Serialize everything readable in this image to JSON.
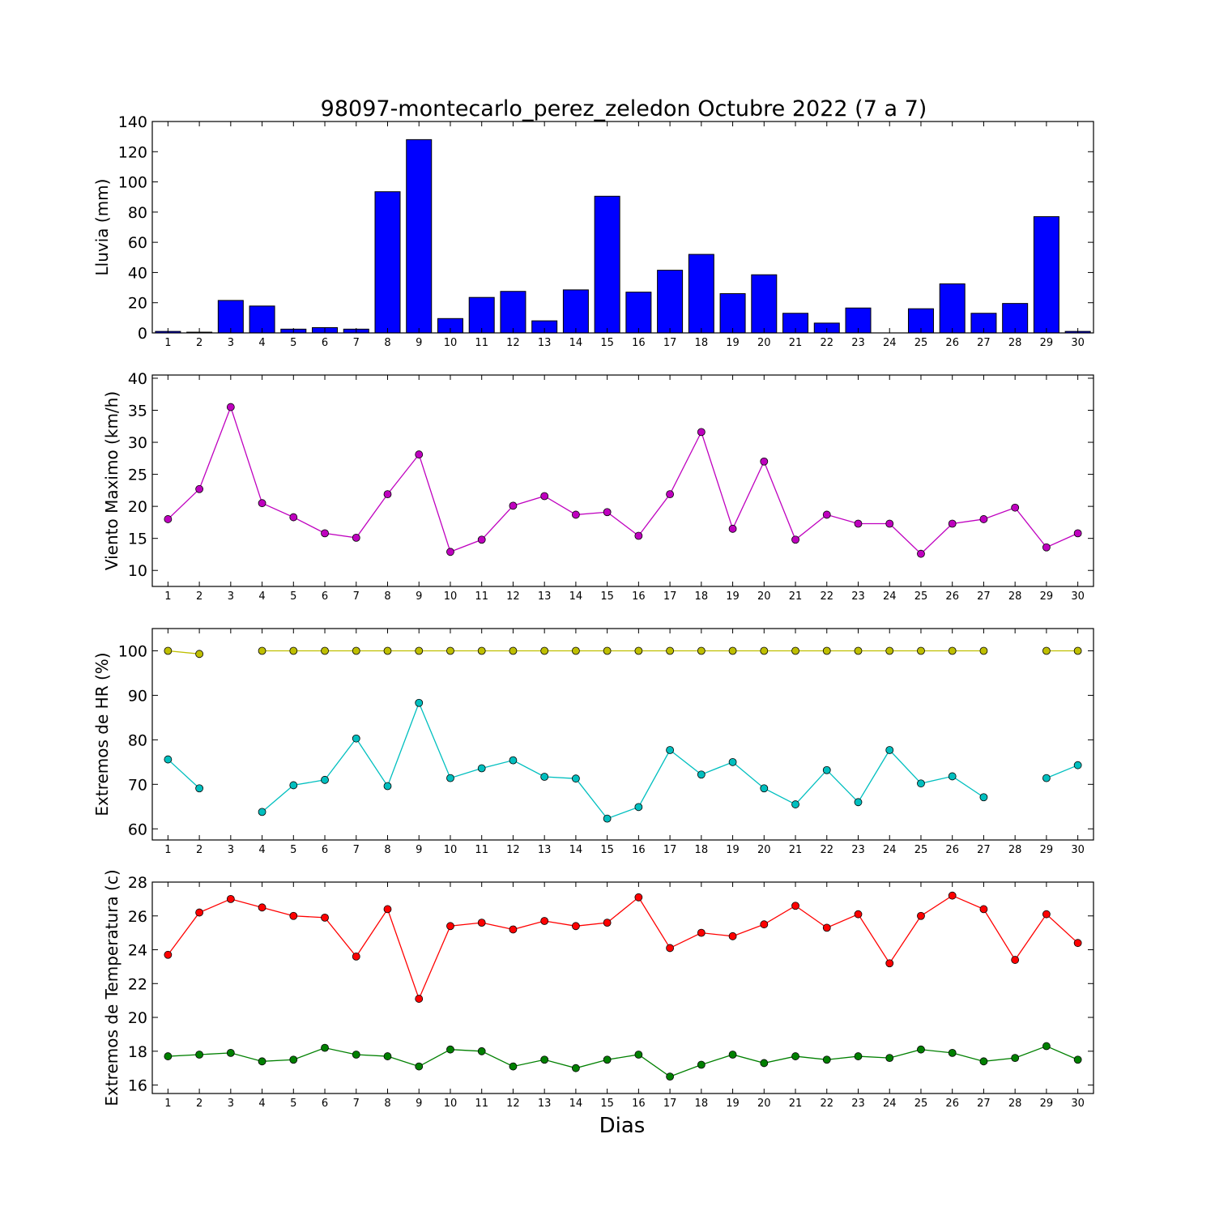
{
  "chart_data": [
    {
      "id": "lluvia",
      "type": "bar",
      "title": "98097-montecarlo_perez_zeledon Octubre 2022  (7 a 7)",
      "xlabel": "",
      "ylabel": "Lluvia (mm)",
      "categories": [
        "1",
        "2",
        "3",
        "4",
        "5",
        "6",
        "7",
        "8",
        "9",
        "10",
        "11",
        "12",
        "13",
        "14",
        "15",
        "16",
        "17",
        "18",
        "19",
        "20",
        "21",
        "22",
        "23",
        "24",
        "25",
        "26",
        "27",
        "28",
        "29",
        "30"
      ],
      "values": [
        1.0,
        0.5,
        21.5,
        17.8,
        2.5,
        3.5,
        2.5,
        93.5,
        128.0,
        9.5,
        23.5,
        27.5,
        8.0,
        28.5,
        90.5,
        27.0,
        41.5,
        52.0,
        26.0,
        38.5,
        13.0,
        6.5,
        16.5,
        0.0,
        16.0,
        32.5,
        13.0,
        19.5,
        77.0,
        1.0
      ],
      "yticks": [
        0,
        20,
        40,
        60,
        80,
        100,
        120,
        140
      ],
      "ylim": [
        0,
        140
      ],
      "colors": {
        "bar": "#0000ff",
        "edge": "#000000"
      }
    },
    {
      "id": "viento",
      "type": "line",
      "xlabel": "",
      "ylabel": "Viento Maximo (km/h)",
      "categories": [
        "1",
        "2",
        "3",
        "4",
        "5",
        "6",
        "7",
        "8",
        "9",
        "10",
        "11",
        "12",
        "13",
        "14",
        "15",
        "16",
        "17",
        "18",
        "19",
        "20",
        "21",
        "22",
        "23",
        "24",
        "25",
        "26",
        "27",
        "28",
        "29",
        "30"
      ],
      "series": [
        {
          "values": [
            18.0,
            22.7,
            35.5,
            20.5,
            18.3,
            15.8,
            15.1,
            21.9,
            28.1,
            12.9,
            14.8,
            20.1,
            21.6,
            18.7,
            19.1,
            15.4,
            21.9,
            31.6,
            16.5,
            27.0,
            14.8,
            18.7,
            17.3,
            17.3,
            12.6,
            17.3,
            18.0,
            19.8,
            13.6,
            15.8
          ],
          "color": "#bf00bf"
        }
      ],
      "yticks": [
        10,
        15,
        20,
        25,
        30,
        35,
        40
      ],
      "ylim": [
        7.5,
        40.5
      ]
    },
    {
      "id": "hr",
      "type": "line",
      "xlabel": "",
      "ylabel": "Extremos de HR (%)",
      "categories": [
        "1",
        "2",
        "3",
        "4",
        "5",
        "6",
        "7",
        "8",
        "9",
        "10",
        "11",
        "12",
        "13",
        "14",
        "15",
        "16",
        "17",
        "18",
        "19",
        "20",
        "21",
        "22",
        "23",
        "24",
        "25",
        "26",
        "27",
        "28",
        "29",
        "30"
      ],
      "series": [
        {
          "values": [
            100,
            99.3,
            null,
            100,
            100,
            100,
            100,
            100,
            100,
            100,
            100,
            100,
            100,
            100,
            100,
            100,
            100,
            100,
            100,
            100,
            100,
            100,
            100,
            100,
            100,
            100,
            100,
            null,
            100,
            100
          ],
          "color": "#bfbf00"
        },
        {
          "values": [
            75.6,
            69.1,
            null,
            63.8,
            69.8,
            71.0,
            80.3,
            69.6,
            88.3,
            71.4,
            73.6,
            75.4,
            71.7,
            71.3,
            62.3,
            64.9,
            77.7,
            72.2,
            75.0,
            69.1,
            65.5,
            73.2,
            66.0,
            77.7,
            70.2,
            71.8,
            67.1,
            null,
            71.4,
            74.3
          ],
          "color": "#00bfbf"
        }
      ],
      "yticks": [
        60,
        70,
        80,
        90,
        100
      ],
      "ylim": [
        57.5,
        105
      ]
    },
    {
      "id": "temperatura",
      "type": "line",
      "xlabel": "Dias",
      "ylabel": "Extremos de Temperatura (c)",
      "categories": [
        "1",
        "2",
        "3",
        "4",
        "5",
        "6",
        "7",
        "8",
        "9",
        "10",
        "11",
        "12",
        "13",
        "14",
        "15",
        "16",
        "17",
        "18",
        "19",
        "20",
        "21",
        "22",
        "23",
        "24",
        "25",
        "26",
        "27",
        "28",
        "29",
        "30"
      ],
      "series": [
        {
          "values": [
            23.7,
            26.2,
            27.0,
            26.5,
            26.0,
            25.9,
            23.6,
            26.4,
            21.1,
            25.4,
            25.6,
            25.2,
            25.7,
            25.4,
            25.6,
            27.1,
            24.1,
            25.0,
            24.8,
            25.5,
            26.6,
            25.3,
            26.1,
            23.2,
            26.0,
            27.2,
            26.4,
            23.4,
            26.1,
            24.4
          ],
          "color": "#ff0000"
        },
        {
          "values": [
            17.7,
            17.8,
            17.9,
            17.4,
            17.5,
            18.2,
            17.8,
            17.7,
            17.1,
            18.1,
            18.0,
            17.1,
            17.5,
            17.0,
            17.5,
            17.8,
            16.5,
            17.2,
            17.8,
            17.3,
            17.7,
            17.5,
            17.7,
            17.6,
            18.1,
            17.9,
            17.4,
            17.6,
            18.3,
            17.5
          ],
          "color": "#008000"
        }
      ],
      "yticks": [
        16,
        18,
        20,
        22,
        24,
        26,
        28
      ],
      "ylim": [
        15.5,
        28
      ]
    }
  ]
}
